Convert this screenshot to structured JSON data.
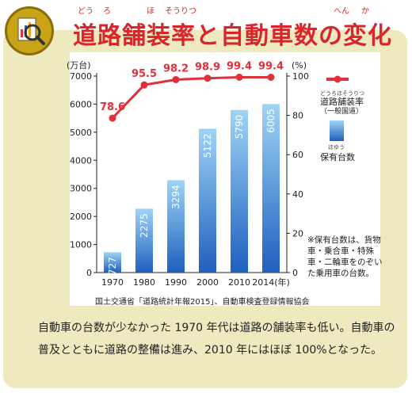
{
  "title": {
    "text": "道路舗装率と自動車数の変化",
    "ruby": [
      {
        "text": "どう"
      },
      {
        "text": "ろ"
      },
      {
        "text": "ほ"
      },
      {
        "text": "そうりつ"
      },
      {
        "text": "へん"
      },
      {
        "text": "か"
      }
    ]
  },
  "chart_data": {
    "type": "bar+line",
    "categories": [
      "1970",
      "1980",
      "1990",
      "2000",
      "2010",
      "2014(年)"
    ],
    "series": [
      {
        "name": "保有台数",
        "type": "bar",
        "axis": "left",
        "unit": "万台",
        "values": [
          727,
          2275,
          3294,
          5122,
          5790,
          6005
        ]
      },
      {
        "name": "道路舗装率",
        "type": "line",
        "axis": "right",
        "unit": "%",
        "values": [
          78.6,
          95.5,
          98.2,
          98.9,
          99.4,
          99.4
        ]
      }
    ],
    "left_axis": {
      "label": "(万台)",
      "ylim": [
        0,
        7000
      ],
      "ticks": [
        "0",
        "1000",
        "2000",
        "3000",
        "4000",
        "5000",
        "6000",
        "7000"
      ]
    },
    "right_axis": {
      "label": "(%)",
      "ylim": [
        0,
        100
      ],
      "ticks": [
        "0",
        "20",
        "40",
        "60",
        "80",
        "100"
      ]
    },
    "legend": {
      "rate": {
        "label": "道路舗装率",
        "sub": "（一般国道）",
        "ruby": "どうろほそうりつ",
        "color": "#e0303a"
      },
      "bar": {
        "label": "保有台数",
        "ruby": "ほゆう",
        "color": "#1f6fc9"
      }
    },
    "legend_position": "right"
  },
  "note": "※保有台数は、貨物車・乗合車・特殊車・二輪車をのぞいた乗用車の台数。",
  "source": "国土交通省「道路統計年報2015」、自動車検査登録情報協会",
  "body_text": "自動車の台数が少なかった 1970 年代は道路の舗装率も低い。自動車の普及とともに道路の整備は進み、2010 年にはほぼ 100%となった。",
  "colors": {
    "card": "#efe9c0",
    "title": "#d8272c",
    "bar_top": "#9fd4f5",
    "bar_bottom": "#1f5fbf",
    "line": "#e0303a"
  },
  "icons": {
    "header": "magnifier-chart-icon"
  }
}
